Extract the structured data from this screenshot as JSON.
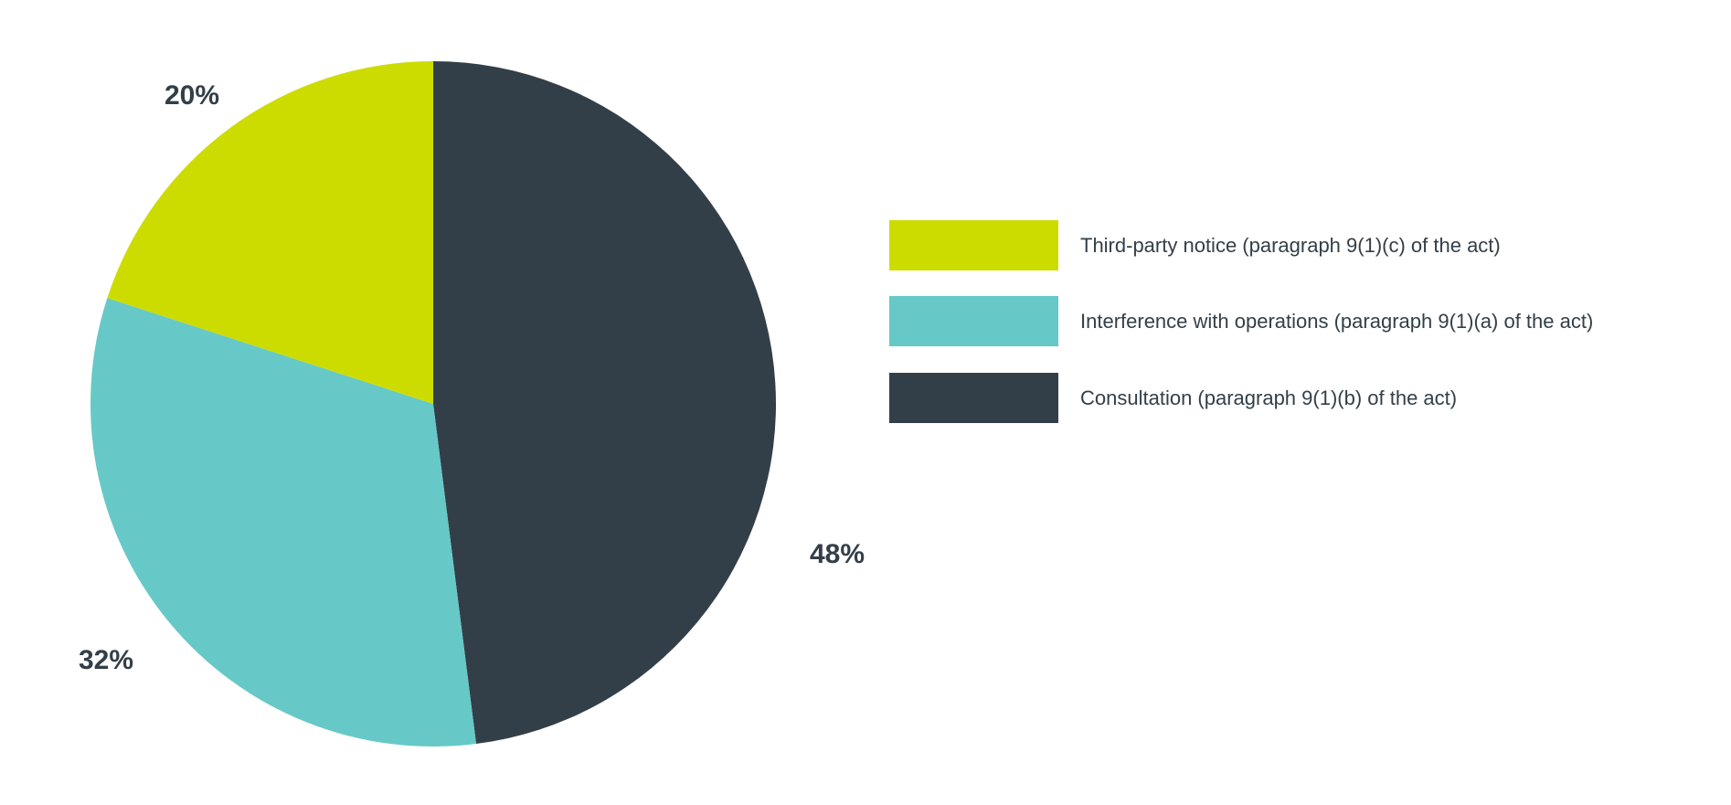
{
  "chart_data": {
    "type": "pie",
    "start": "top",
    "direction": "clockwise",
    "slices": [
      {
        "label": "Consultation (paragraph 9(1)(b) of the act)",
        "value": 48,
        "display": "48%",
        "color": "#333f48"
      },
      {
        "label": "Interference with operations (paragraph 9(1)(a) of the act)",
        "value": 32,
        "display": "32%",
        "color": "#66c9c7"
      },
      {
        "label": "Third-party notice (paragraph 9(1)(c) of the act)",
        "value": 20,
        "display": "20%",
        "color": "#cddc00"
      }
    ],
    "legend": {
      "placement": "right",
      "order": [
        2,
        1,
        0
      ]
    }
  }
}
